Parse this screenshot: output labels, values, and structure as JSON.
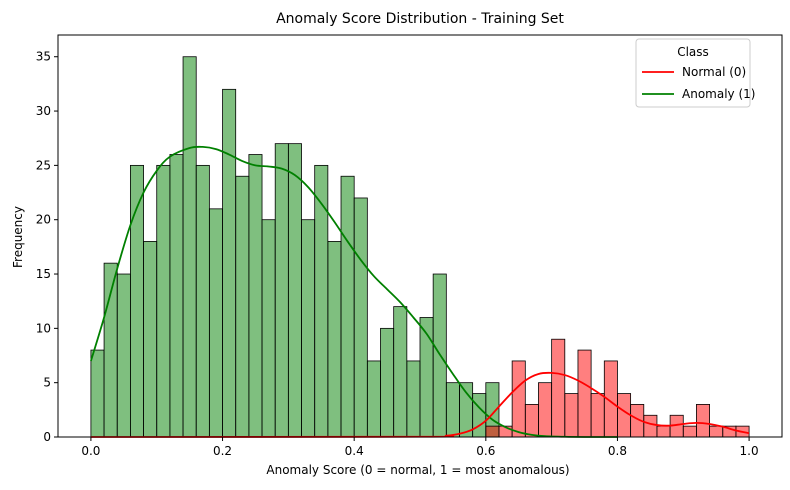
{
  "chart_data": {
    "type": "histogram",
    "title": "Anomaly Score Distribution - Training Set",
    "xlabel": "Anomaly Score (0 = normal, 1 = most anomalous)",
    "ylabel": "Frequency",
    "xlim": [
      -0.05,
      1.05
    ],
    "ylim": [
      0,
      37
    ],
    "xticks": [
      "0.0",
      "0.2",
      "0.4",
      "0.6",
      "0.8",
      "1.0"
    ],
    "yticks": [
      "0",
      "5",
      "10",
      "15",
      "20",
      "25",
      "30",
      "35"
    ],
    "bin_start": 0.0,
    "bin_width": 0.02,
    "legend": {
      "title": "Class",
      "placement": "top-right",
      "entries": [
        "Normal (0)",
        "Anomaly (1)"
      ]
    },
    "series": [
      {
        "name": "Anomaly (1)",
        "color": "#008000",
        "fill": "#80b880",
        "bin_counts": [
          8,
          16,
          15,
          25,
          18,
          25,
          26,
          35,
          25,
          21,
          32,
          24,
          26,
          20,
          27,
          27,
          20,
          25,
          18,
          24,
          22,
          7,
          10,
          12,
          7,
          11,
          15,
          5,
          5,
          4,
          5,
          0,
          0,
          0,
          0,
          0,
          0,
          0,
          0,
          0,
          0,
          0,
          0,
          0,
          0,
          0,
          0,
          0,
          0,
          0
        ],
        "kde": {
          "x": [
            0.0,
            0.02,
            0.04,
            0.06,
            0.08,
            0.1,
            0.12,
            0.15,
            0.17,
            0.19,
            0.21,
            0.23,
            0.25,
            0.27,
            0.29,
            0.31,
            0.33,
            0.35,
            0.37,
            0.39,
            0.41,
            0.43,
            0.45,
            0.47,
            0.49,
            0.51,
            0.53,
            0.55,
            0.57,
            0.59,
            0.61,
            0.63,
            0.65,
            0.67,
            0.69,
            0.72,
            0.75,
            0.8
          ],
          "y": [
            7,
            11,
            15.5,
            19.5,
            22.5,
            24.5,
            25.8,
            26.6,
            26.7,
            26.5,
            26,
            25.4,
            25,
            24.9,
            24.7,
            24.1,
            23,
            21.5,
            19.8,
            18,
            16.3,
            14.8,
            13.6,
            12.4,
            11,
            9.5,
            7.6,
            5.8,
            4.1,
            2.7,
            1.6,
            0.9,
            0.45,
            0.2,
            0.08,
            0.02,
            0,
            0
          ]
        }
      },
      {
        "name": "Normal (0)",
        "color": "#ff0000",
        "fill": "#ff8080",
        "bin_counts": [
          0,
          0,
          0,
          0,
          0,
          0,
          0,
          0,
          0,
          0,
          0,
          0,
          0,
          0,
          0,
          0,
          0,
          0,
          0,
          0,
          0,
          0,
          0,
          0,
          0,
          0,
          0,
          0,
          0,
          0,
          1,
          1,
          7,
          3,
          5,
          9,
          4,
          8,
          4,
          7,
          4,
          3,
          2,
          1,
          2,
          1,
          3,
          1,
          1,
          1
        ],
        "kde": {
          "x": [
            0.0,
            0.5,
            0.54,
            0.56,
            0.58,
            0.6,
            0.62,
            0.64,
            0.66,
            0.68,
            0.7,
            0.72,
            0.74,
            0.76,
            0.78,
            0.8,
            0.82,
            0.84,
            0.86,
            0.88,
            0.9,
            0.92,
            0.94,
            0.96,
            0.98,
            1.0
          ],
          "y": [
            0,
            0.02,
            0.12,
            0.3,
            0.7,
            1.5,
            2.8,
            4.1,
            5.2,
            5.8,
            5.9,
            5.7,
            5.2,
            4.5,
            3.7,
            2.8,
            2.0,
            1.4,
            1.1,
            1.05,
            1.2,
            1.3,
            1.2,
            0.95,
            0.6,
            0.35
          ]
        }
      }
    ]
  }
}
